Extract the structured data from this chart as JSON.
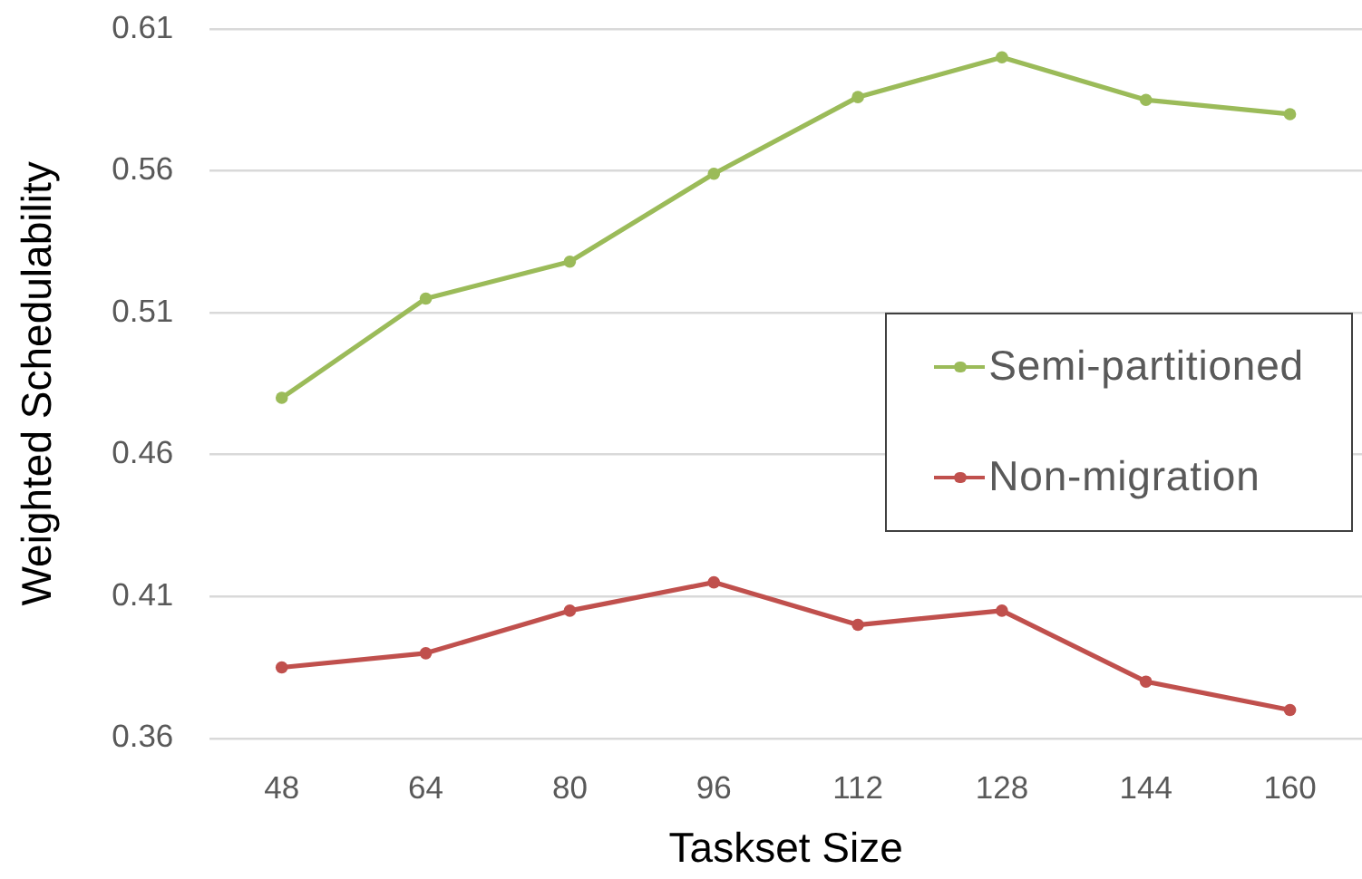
{
  "chart_data": {
    "type": "line",
    "xlabel": "Taskset Size",
    "ylabel": "Weighted Schedulability",
    "categories": [
      "48",
      "64",
      "80",
      "96",
      "112",
      "128",
      "144",
      "160"
    ],
    "series": [
      {
        "name": "Semi-partitioned",
        "color": "#9bbb59",
        "values": [
          0.48,
          0.515,
          0.528,
          0.559,
          0.586,
          0.6,
          0.585,
          0.58
        ]
      },
      {
        "name": "Non-migration",
        "color": "#c0504d",
        "values": [
          0.385,
          0.39,
          0.405,
          0.415,
          0.4,
          0.405,
          0.38,
          0.37
        ]
      }
    ],
    "ylim": [
      0.36,
      0.61
    ],
    "yticks": [
      0.36,
      0.41,
      0.46,
      0.51,
      0.56,
      0.61
    ],
    "grid": "y",
    "legend": "right",
    "marker": "circle",
    "line_style": "solid"
  }
}
